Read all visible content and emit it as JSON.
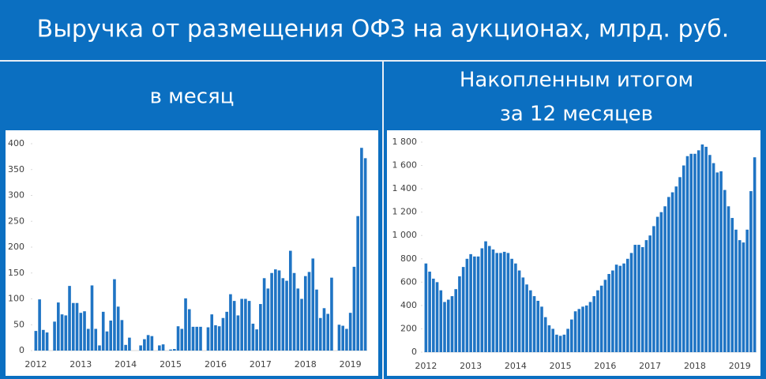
{
  "title": "Выручка от размещения ОФЗ на аукционах, млрд. руб.",
  "chart_data": [
    {
      "type": "bar",
      "title": [
        "в месяц"
      ],
      "categories": [
        "2012",
        null,
        null,
        null,
        null,
        null,
        null,
        null,
        null,
        null,
        null,
        null,
        "2013",
        null,
        null,
        null,
        null,
        null,
        null,
        null,
        null,
        null,
        null,
        null,
        "2014",
        null,
        null,
        null,
        null,
        null,
        null,
        null,
        null,
        null,
        null,
        null,
        "2015",
        null,
        null,
        null,
        null,
        null,
        null,
        null,
        null,
        null,
        null,
        null,
        "2016",
        null,
        null,
        null,
        null,
        null,
        null,
        null,
        null,
        null,
        null,
        null,
        "2017",
        null,
        null,
        null,
        null,
        null,
        null,
        null,
        null,
        null,
        null,
        null,
        "2018",
        null,
        null,
        null,
        null,
        null,
        null,
        null,
        null,
        null,
        null,
        null,
        "2019",
        null,
        null,
        null,
        null
      ],
      "values": [
        38,
        99,
        40,
        35,
        0,
        56,
        93,
        70,
        68,
        125,
        92,
        92,
        73,
        76,
        42,
        126,
        42,
        10,
        75,
        37,
        58,
        138,
        85,
        59,
        11,
        25,
        0,
        0,
        10,
        22,
        30,
        28,
        0,
        10,
        12,
        0,
        2,
        3,
        47,
        42,
        101,
        80,
        46,
        46,
        46,
        0,
        45,
        70,
        49,
        47,
        63,
        75,
        109,
        96,
        68,
        100,
        100,
        96,
        52,
        41,
        90,
        140,
        120,
        150,
        157,
        155,
        140,
        135,
        193,
        150,
        120,
        100,
        144,
        152,
        178,
        118,
        63,
        82,
        71,
        141,
        0,
        50,
        48,
        42,
        73,
        162,
        260,
        392,
        372
      ],
      "color": "#1f74c4",
      "ylim": [
        0,
        400
      ],
      "yticks": [
        0,
        50,
        100,
        150,
        200,
        250,
        300,
        350,
        400
      ]
    },
    {
      "type": "bar",
      "title": [
        "Накопленным итогом",
        "за 12 месяцев"
      ],
      "categories": [
        "2012",
        null,
        null,
        null,
        null,
        null,
        null,
        null,
        null,
        null,
        null,
        null,
        "2013",
        null,
        null,
        null,
        null,
        null,
        null,
        null,
        null,
        null,
        null,
        null,
        "2014",
        null,
        null,
        null,
        null,
        null,
        null,
        null,
        null,
        null,
        null,
        null,
        "2015",
        null,
        null,
        null,
        null,
        null,
        null,
        null,
        null,
        null,
        null,
        null,
        "2016",
        null,
        null,
        null,
        null,
        null,
        null,
        null,
        null,
        null,
        null,
        null,
        "2017",
        null,
        null,
        null,
        null,
        null,
        null,
        null,
        null,
        null,
        null,
        null,
        "2018",
        null,
        null,
        null,
        null,
        null,
        null,
        null,
        null,
        null,
        null,
        null,
        "2019",
        null,
        null,
        null,
        null
      ],
      "values": [
        760,
        690,
        630,
        600,
        530,
        430,
        450,
        480,
        540,
        650,
        730,
        800,
        840,
        820,
        820,
        890,
        950,
        910,
        880,
        850,
        850,
        860,
        850,
        800,
        760,
        700,
        640,
        580,
        530,
        480,
        440,
        390,
        300,
        230,
        200,
        150,
        140,
        150,
        200,
        280,
        350,
        370,
        390,
        400,
        430,
        480,
        530,
        570,
        620,
        670,
        700,
        750,
        740,
        760,
        800,
        850,
        920,
        920,
        900,
        960,
        1000,
        1080,
        1160,
        1200,
        1250,
        1330,
        1370,
        1420,
        1500,
        1600,
        1680,
        1700,
        1700,
        1730,
        1780,
        1760,
        1690,
        1620,
        1540,
        1550,
        1390,
        1250,
        1150,
        1050,
        960,
        940,
        1050,
        1380,
        1670
      ],
      "color": "#1f74c4",
      "ylim": [
        0,
        1800
      ],
      "yticks": [
        0,
        200,
        400,
        600,
        800,
        {
          "value": 1000,
          "label": "1 000"
        },
        {
          "value": 1200,
          "label": "1 200"
        },
        {
          "value": 1400,
          "label": "1 400"
        },
        {
          "value": 1600,
          "label": "1 600"
        },
        {
          "value": 1800,
          "label": "1 800"
        }
      ]
    }
  ]
}
